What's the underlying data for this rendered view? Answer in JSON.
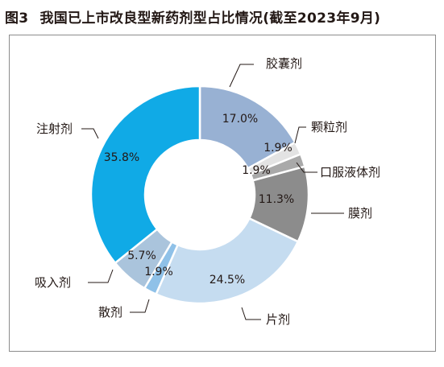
{
  "figure": {
    "number": "图3",
    "title": "我国已上市改良型新药剂型占比情况(截至2023年9月)"
  },
  "chart_data": {
    "type": "pie",
    "variant": "donut",
    "title": "我国已上市改良型新药剂型占比情况(截至2023年9月)",
    "slices": [
      {
        "label": "胶囊剂",
        "value": 17.0,
        "value_label": "17.0%",
        "color": "#98b1d3"
      },
      {
        "label": "颗粒剂",
        "value": 1.9,
        "value_label": "1.9%",
        "color": "#e3e3e3"
      },
      {
        "label": "口服液体剂",
        "value": 1.9,
        "value_label": "1.9%",
        "color": "#a9a9a9"
      },
      {
        "label": "膜剂",
        "value": 11.3,
        "value_label": "11.3%",
        "color": "#8c8c8c"
      },
      {
        "label": "片剂",
        "value": 24.5,
        "value_label": "24.5%",
        "color": "#c5dcf0"
      },
      {
        "label": "散剂",
        "value": 1.9,
        "value_label": "1.9%",
        "color": "#8fc1e8"
      },
      {
        "label": "吸入剂",
        "value": 5.7,
        "value_label": "5.7%",
        "color": "#aac4dc"
      },
      {
        "label": "注射剂",
        "value": 35.8,
        "value_label": "35.8%",
        "color": "#10aae6"
      }
    ]
  }
}
